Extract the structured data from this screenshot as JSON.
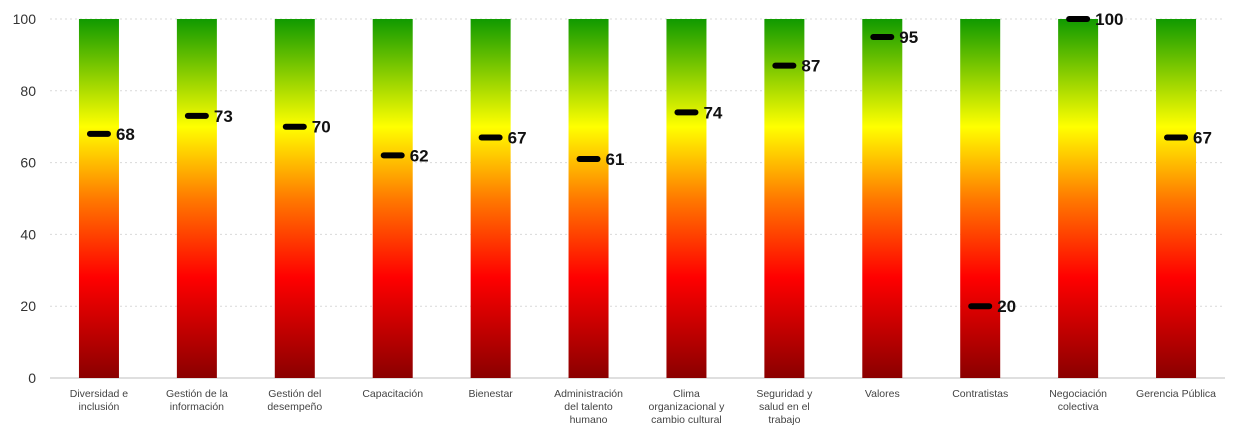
{
  "chart_data": {
    "type": "bar",
    "title": "",
    "xlabel": "",
    "ylabel": "",
    "ylim": [
      0,
      100
    ],
    "yticks": [
      0,
      20,
      40,
      60,
      80,
      100
    ],
    "grid": true,
    "legend": "none",
    "bar_gradient": {
      "top": "#109a00",
      "upper_mid": "#ffff00",
      "mid": "#ff7a00",
      "lower_mid": "#ff0000",
      "bottom": "#8a0000"
    },
    "marker_color": "#000000",
    "categories": [
      [
        "Diversidad e",
        "inclusión"
      ],
      [
        "Gestión de la",
        "información"
      ],
      [
        "Gestión del",
        "desempeño"
      ],
      [
        "Capacitación"
      ],
      [
        "Bienestar"
      ],
      [
        "Administración",
        "del talento",
        "humano"
      ],
      [
        "Clima",
        "organizacional y",
        "cambio cultural"
      ],
      [
        "Seguridad y",
        "salud en el",
        "trabajo"
      ],
      [
        "Valores"
      ],
      [
        "Contratistas"
      ],
      [
        "Negociación",
        "colectiva"
      ],
      [
        "Gerencia Pública"
      ]
    ],
    "values": [
      68,
      73,
      70,
      62,
      67,
      61,
      74,
      87,
      95,
      20,
      100,
      67
    ]
  }
}
